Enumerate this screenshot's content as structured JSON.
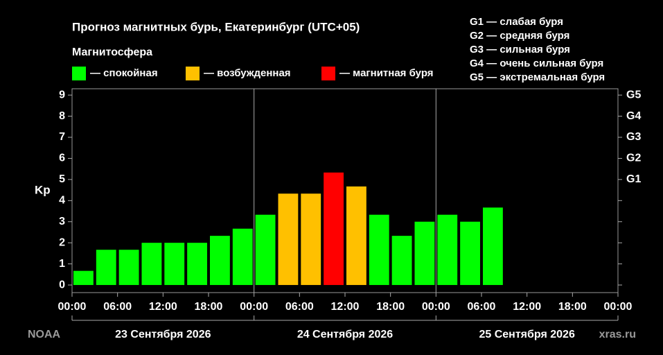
{
  "chart_data": {
    "type": "bar",
    "title": "Прогноз магнитных бурь, Екатеринбург (UTC+05)",
    "subtitle": "Магнитосфера",
    "legend": [
      {
        "label": "— спокойная",
        "color": "#00ff00"
      },
      {
        "label": "— возбужденная",
        "color": "#ffc000"
      },
      {
        "label": "— магнитная буря",
        "color": "#ff0000"
      }
    ],
    "storm_scale": [
      "G1 — слабая буря",
      "G2 — средняя буря",
      "G3 — сильная буря",
      "G4 — очень сильная буря",
      "G5 — экстремальная буря"
    ],
    "y_label": "Kp",
    "values": [
      0.67,
      1.67,
      1.67,
      2,
      2,
      2,
      2.33,
      2.67,
      3.33,
      4.33,
      4.33,
      5.33,
      4.67,
      3.33,
      2.33,
      3,
      3.33,
      3,
      3.67,
      null,
      null,
      null,
      null,
      null
    ],
    "colors": [
      "#00ff00",
      "#00ff00",
      "#00ff00",
      "#00ff00",
      "#00ff00",
      "#00ff00",
      "#00ff00",
      "#00ff00",
      "#00ff00",
      "#ffc000",
      "#ffc000",
      "#ff0000",
      "#ffc000",
      "#00ff00",
      "#00ff00",
      "#00ff00",
      "#00ff00",
      "#00ff00",
      "#00ff00",
      null,
      null,
      null,
      null,
      null
    ],
    "xtick_labels": [
      "00:00",
      "06:00",
      "12:00",
      "18:00",
      "00:00",
      "06:00",
      "12:00",
      "18:00",
      "00:00",
      "06:00",
      "12:00",
      "18:00",
      "00:00"
    ],
    "days": [
      "23 Сентября 2026",
      "24 Сентября 2026",
      "25 Сентября 2026"
    ],
    "ylim": [
      -0.36,
      9.3
    ],
    "yticks": [
      0,
      1,
      2,
      3,
      4,
      5,
      6,
      7,
      8,
      9
    ],
    "y2lim": [
      -0.36,
      9.3
    ],
    "y2ticks": [
      {
        "value": 5,
        "label": "G1"
      },
      {
        "value": 6,
        "label": "G2"
      },
      {
        "value": 7,
        "label": "G3"
      },
      {
        "value": 8,
        "label": "G4"
      },
      {
        "value": 9,
        "label": "G5"
      }
    ],
    "source": "NOAA",
    "site": "xras.ru"
  }
}
